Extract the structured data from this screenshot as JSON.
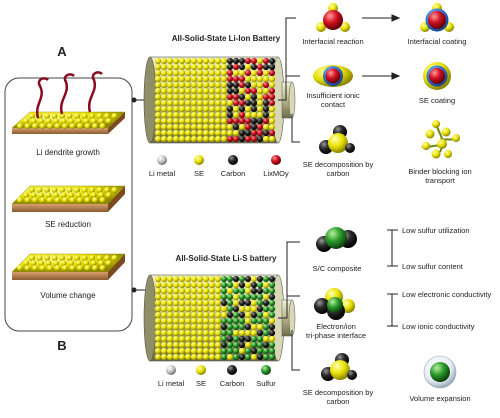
{
  "panel_a": {
    "letter": "A",
    "battery_title": "All-Solid-State Li-Ion Battery",
    "issues": [
      {
        "label": "Interfacial reaction",
        "solution": "Interfacial coating"
      },
      {
        "label_line1": "Insufficient ionic",
        "label_line2": "contact",
        "solution": "SE coating"
      },
      {
        "label_line1": "SE decomposition by",
        "label_line2": "carbon",
        "solution_line1": "Binder blocking ion",
        "solution_line2": "transport"
      }
    ],
    "legend": [
      "Li metal",
      "SE",
      "Carbon",
      "LixMOy"
    ]
  },
  "left_box": {
    "items": [
      "Li dendrite growth",
      "SE reduction",
      "Volume change"
    ]
  },
  "panel_b": {
    "letter": "B",
    "battery_title": "All-Solid-State Li-S battery",
    "issues": [
      {
        "label": "S/C composite",
        "subs": [
          "Low sulfur utilization",
          "Low sulfur content"
        ]
      },
      {
        "label_line1": "Electron/ion",
        "label_line2": "tri-phase interface",
        "subs": [
          "Low electronic conductivity",
          "Low ionic conductivity"
        ]
      },
      {
        "label_line1": "SE decomposition by",
        "label_line2": "carbon",
        "extra": "Volume expansion"
      }
    ],
    "legend": [
      "Li metal",
      "SE",
      "Carbon",
      "Sulfur"
    ]
  },
  "colors": {
    "se": "#e8e000",
    "carbon": "#222222",
    "limo": "#d01020",
    "sulfur": "#2c9c2c",
    "li": "#c8c8c8",
    "line": "#222222"
  }
}
